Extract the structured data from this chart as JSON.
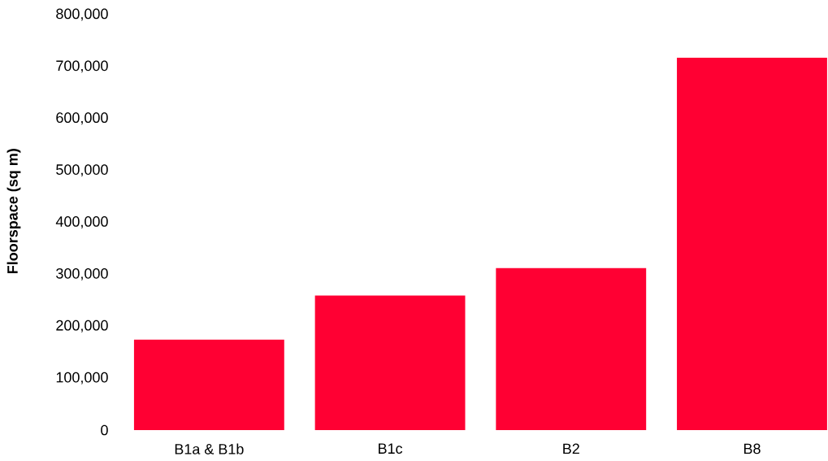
{
  "chart_data": {
    "type": "bar",
    "ylabel": "Floorspace (sq m)",
    "categories": [
      "B1a & B1b",
      "B1c",
      "B2",
      "B8"
    ],
    "values": [
      174000,
      259000,
      312000,
      717000
    ],
    "color": "#ff0033",
    "ylim": [
      0,
      800000
    ],
    "yticks": [
      0,
      {
        "value": 100000,
        "label": "100,000"
      },
      {
        "value": 200000,
        "label": "200,000"
      },
      {
        "value": 300000,
        "label": "300,000"
      },
      {
        "value": 400000,
        "label": "400,000"
      },
      {
        "value": 500000,
        "label": "500,000"
      },
      {
        "value": 600000,
        "label": "600,000"
      },
      {
        "value": 700000,
        "label": "700,000"
      },
      {
        "value": 800000,
        "label": "800,000"
      }
    ]
  }
}
